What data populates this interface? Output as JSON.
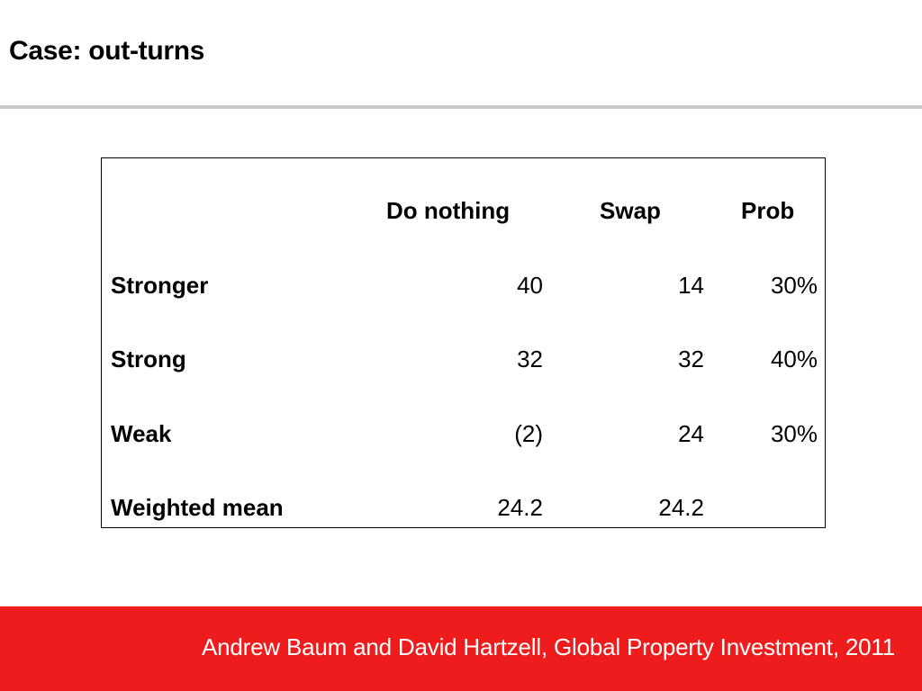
{
  "slide": {
    "title": "Case: out-turns",
    "footer": "Andrew Baum and David Hartzell, Global Property Investment, 2011"
  },
  "table": {
    "headers": [
      "",
      "Do nothing",
      "Swap",
      "Prob"
    ],
    "rows": [
      {
        "label": "Stronger",
        "do_nothing": "40",
        "swap": "14",
        "prob": "30%"
      },
      {
        "label": "Strong",
        "do_nothing": "32",
        "swap": "32",
        "prob": "40%"
      },
      {
        "label": "Weak",
        "do_nothing": "(2)",
        "swap": "24",
        "prob": "30%"
      },
      {
        "label": "Weighted mean",
        "do_nothing": "24.2",
        "swap": "24.2",
        "prob": ""
      }
    ]
  },
  "colors": {
    "footer_background": "#ee1c1c",
    "rule": "#c8c8c8"
  }
}
